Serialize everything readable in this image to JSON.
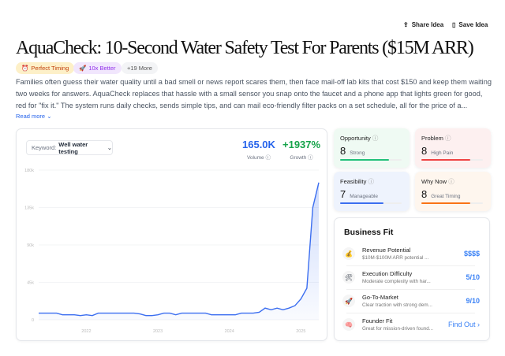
{
  "header": {
    "share_label": "Share Idea",
    "save_label": "Save Idea"
  },
  "title": "AquaCheck: 10-Second Water Safety Test For Parents ($15M ARR)",
  "tags": [
    {
      "label": "Perfect Timing",
      "icon": "alarm-clock-icon"
    },
    {
      "label": "10x Better",
      "icon": "rocket-icon"
    },
    {
      "label": "+19 More"
    }
  ],
  "description": "Families often guess their water quality until a bad smell or news report scares them, then face mail-off lab kits that cost $150 and keep them waiting two weeks for answers. AquaCheck replaces that hassle with a small sensor you snap onto the faucet and a phone app that lights green for good, red for \"fix it.\" The system runs daily checks, sends simple tips, and can mail eco-friendly filter packs on a set schedule, all for the price of a...",
  "read_more": "Read more",
  "trend": {
    "keyword_label": "Keyword:",
    "keyword_value": "Well water testing",
    "volume_value": "165.0K",
    "volume_label": "Volume",
    "growth_value": "+1937%",
    "growth_label": "Growth"
  },
  "chart_data": {
    "type": "area",
    "series": [
      {
        "values": [
          8000,
          8000,
          8000,
          8000,
          6000,
          6000,
          6000,
          5000,
          6000,
          5000,
          8000,
          8000,
          8000,
          8000,
          8000,
          8000,
          8000,
          7000,
          5000,
          5000,
          6000,
          8000,
          8000,
          6000,
          8000,
          8000,
          8000,
          8000,
          8000,
          6000,
          6000,
          6000,
          6000,
          6000,
          8000,
          8000,
          8000,
          9000,
          14000,
          12000,
          14000,
          12000,
          14000,
          17000,
          25000,
          38000,
          135000,
          165000
        ]
      }
    ],
    "x_start": "2021-05",
    "x_step": "month",
    "ylim": [
      0,
      180000
    ],
    "y_ticks": [
      "0",
      "45k",
      "90k",
      "135k",
      "180k"
    ],
    "x_ticks": [
      "2022",
      "2023",
      "2024",
      "2025"
    ],
    "grid": true,
    "color": "#3b6ef0"
  },
  "scores": [
    {
      "title": "Opportunity",
      "value": "8",
      "label": "Strong",
      "fill": 0.8,
      "color": "#22c07a",
      "bg": "#effaf3"
    },
    {
      "title": "Problem",
      "value": "8",
      "label": "High Pain",
      "fill": 0.8,
      "color": "#ef4444",
      "bg": "#fdf0f0"
    },
    {
      "title": "Feasibility",
      "value": "7",
      "label": "Manageable",
      "fill": 0.7,
      "color": "#3b6ef0",
      "bg": "#eef3fd"
    },
    {
      "title": "Why Now",
      "value": "8",
      "label": "Great Timing",
      "fill": 0.8,
      "color": "#f97316",
      "bg": "#fef6ee"
    }
  ],
  "business_fit": {
    "title": "Business Fit",
    "items": [
      {
        "title": "Revenue Potential",
        "subtitle": "$10M-$100M ARR potential ...",
        "value": "$$$$",
        "icon": "money-bag-icon",
        "glyph": "💰"
      },
      {
        "title": "Execution Difficulty",
        "subtitle": "Moderate complexity with har...",
        "value": "5/10",
        "icon": "tools-icon",
        "glyph": "🛠"
      },
      {
        "title": "Go-To-Market",
        "subtitle": "Clear traction with strong dem...",
        "value": "9/10",
        "icon": "rocket-icon",
        "glyph": "🚀"
      },
      {
        "title": "Founder Fit",
        "subtitle": "Great for mission-driven found...",
        "value": "Find Out",
        "icon": "brain-icon",
        "glyph": "🧠"
      }
    ]
  }
}
